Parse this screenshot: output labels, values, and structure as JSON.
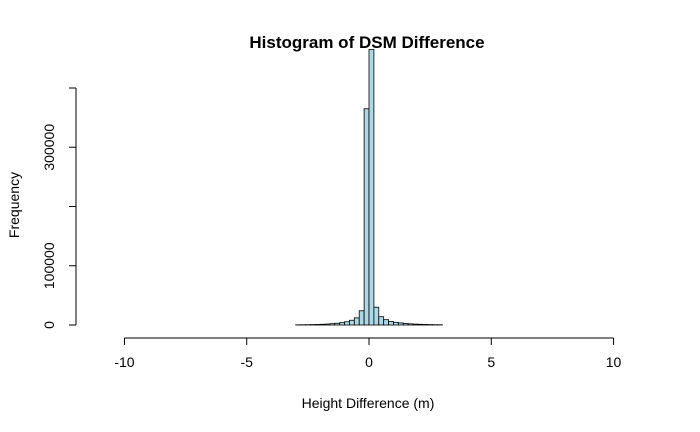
{
  "chart_data": {
    "type": "bar",
    "title": "Histogram of DSM Difference",
    "xlabel": "Height Difference (m)",
    "ylabel": "Frequency",
    "xlim": [
      -11,
      11
    ],
    "ylim": [
      0,
      400000
    ],
    "x_ticks": [
      -10,
      -5,
      0,
      5,
      10
    ],
    "x_tick_labels": [
      "-10",
      "-5",
      "0",
      "5",
      "10"
    ],
    "y_ticks": [
      0,
      100000,
      200000,
      300000,
      400000
    ],
    "y_tick_labels": [
      "0",
      "100000",
      "",
      "300000",
      ""
    ],
    "bar_color": "#add8e6",
    "bin_width": 0.2,
    "bins_start": [
      -3.0,
      -2.8,
      -2.6,
      -2.4,
      -2.2,
      -2.0,
      -1.8,
      -1.6,
      -1.4,
      -1.2,
      -1.0,
      -0.8,
      -0.6,
      -0.4,
      -0.2,
      0.0,
      0.2,
      0.4,
      0.6,
      0.8,
      1.0,
      1.2,
      1.4,
      1.6,
      1.8,
      2.0,
      2.2,
      2.4,
      2.6,
      2.8
    ],
    "values": [
      300,
      400,
      500,
      700,
      900,
      1200,
      1600,
      2200,
      3000,
      4000,
      5500,
      8000,
      12000,
      24000,
      365000,
      465000,
      30000,
      14000,
      9000,
      6000,
      4500,
      3500,
      2500,
      2000,
      1500,
      1200,
      900,
      700,
      500,
      400
    ]
  }
}
